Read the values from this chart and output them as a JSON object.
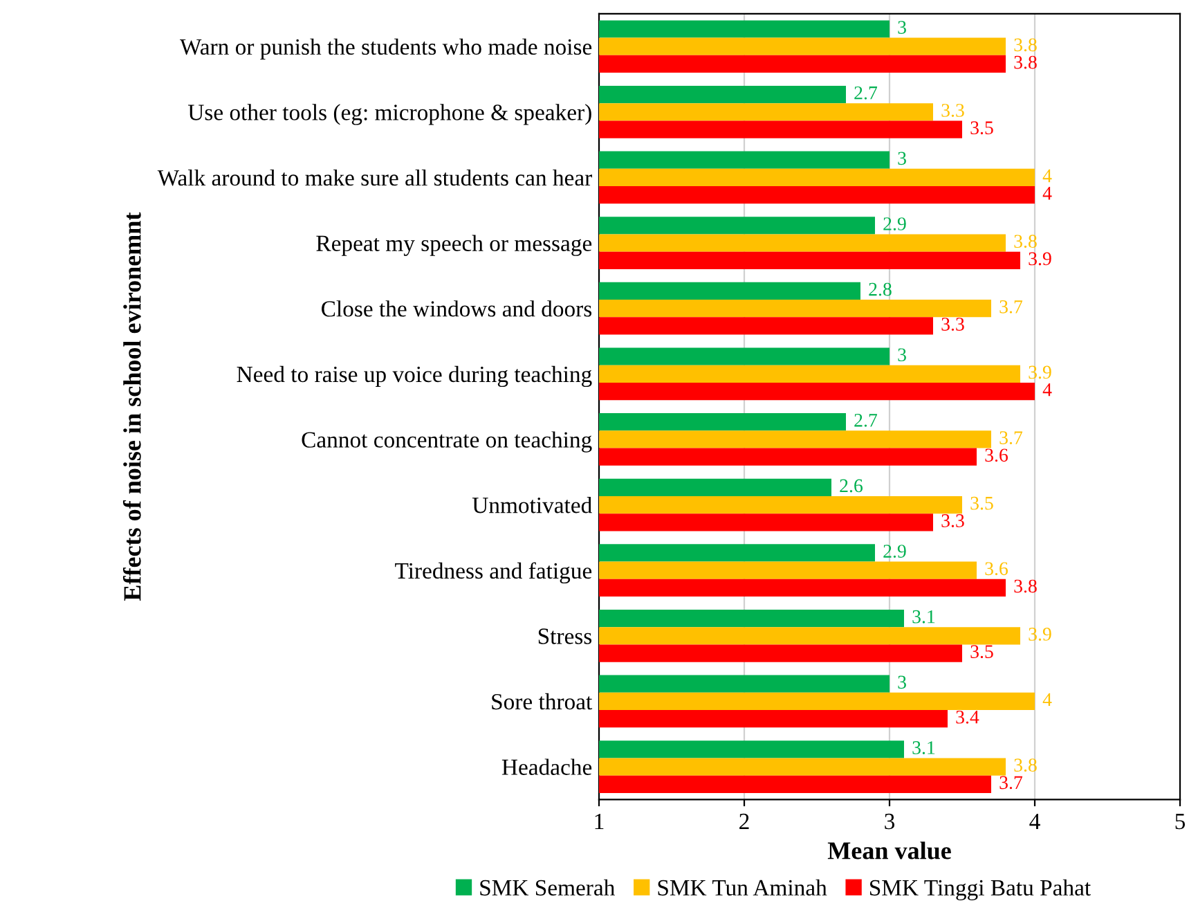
{
  "chart_data": {
    "type": "bar",
    "orientation": "horizontal",
    "xlabel": "Mean value",
    "ylabel": "Effects of noise in school evironemnt",
    "categories": [
      "Warn or punish the students who made noise",
      "Use other tools (eg: microphone & speaker)",
      "Walk around to make sure all students can hear",
      "Repeat my speech or message",
      "Close the windows and doors",
      "Need to raise up voice during teaching",
      "Cannot concentrate on teaching",
      "Unmotivated",
      "Tiredness and fatigue",
      "Stress",
      "Sore throat",
      "Headache"
    ],
    "series": [
      {
        "name": "SMK Semerah",
        "color": "#00b050",
        "values": [
          3,
          2.7,
          3,
          2.9,
          2.8,
          3,
          2.7,
          2.6,
          2.9,
          3.1,
          3,
          3.1
        ]
      },
      {
        "name": "SMK Tun Aminah",
        "color": "#ffc000",
        "values": [
          3.8,
          3.3,
          4,
          3.8,
          3.7,
          3.9,
          3.7,
          3.5,
          3.6,
          3.9,
          4,
          3.8
        ]
      },
      {
        "name": "SMK Tinggi Batu Pahat",
        "color": "#ff0000",
        "values": [
          3.8,
          3.5,
          4,
          3.9,
          3.3,
          4,
          3.6,
          3.3,
          3.8,
          3.5,
          3.4,
          3.7
        ]
      }
    ],
    "xlim": [
      1,
      5
    ],
    "xticks": [
      1,
      2,
      3,
      4,
      5
    ],
    "grid": "x",
    "legend": "bottom",
    "data_labels": true
  }
}
